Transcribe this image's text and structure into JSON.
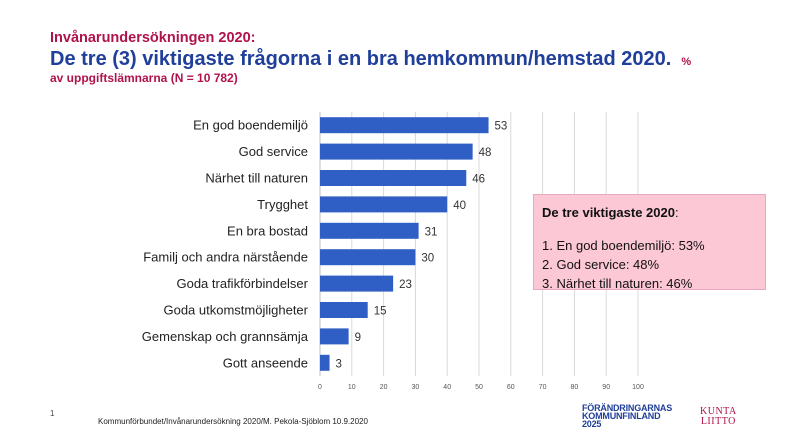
{
  "header": {
    "kicker": "Invånarundersökningen 2020:",
    "title": "De tre (3) viktigaste frågorna i en bra hemkommun/hemstad 2020.",
    "unit": "%",
    "subtitle": "av uppgiftslämnarna  (N = 10 782)"
  },
  "chart_data": {
    "type": "bar",
    "orientation": "horizontal",
    "categories": [
      "En god boendemiljö",
      "God service",
      "Närhet till naturen",
      "Trygghet",
      "En bra bostad",
      "Familj och andra närstående",
      "Goda trafikförbindelser",
      "Goda utkomstmöjligheter",
      "Gemenskap och grannsämja",
      "Gott anseende"
    ],
    "values": [
      53,
      48,
      46,
      40,
      31,
      30,
      23,
      15,
      9,
      3
    ],
    "xlim": [
      0,
      100
    ],
    "xticks": [
      0,
      10,
      20,
      30,
      40,
      50,
      60,
      70,
      80,
      90,
      100
    ],
    "grid": true,
    "bar_color": "#2f5fc4"
  },
  "callout": {
    "heading": "De tre viktigaste 2020",
    "colon": ":",
    "items": [
      "1. En god boendemiljö: 53%",
      "2. God service: 48%",
      "3. Närhet till naturen: 46%"
    ],
    "background": "#fcc8d6"
  },
  "footer": {
    "page_number": "1",
    "source": "Kommunförbundet/Invånarundersökning  2020/M. Pekola-Sjöblom  10.9.2020",
    "logo_line1": "FÖRÄNDRINGARNAS",
    "logo_line2": "KOMMUNFINLAND",
    "logo_line3": "2025",
    "logo2_line1": "KUNTA",
    "logo2_line2": "LIITTO"
  }
}
